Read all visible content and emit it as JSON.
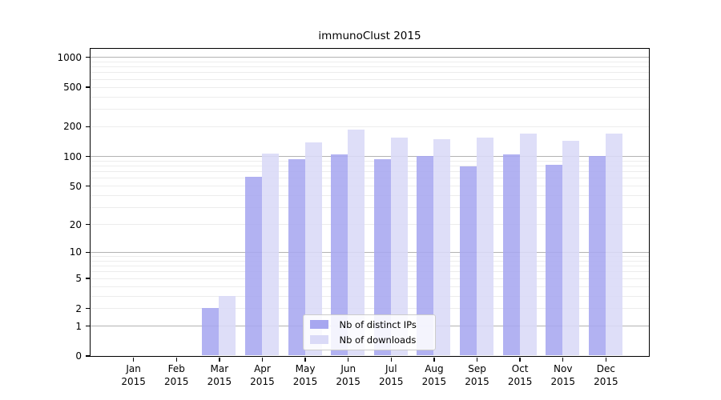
{
  "chart_data": {
    "type": "bar",
    "title": "immunoClust 2015",
    "categories": [
      "Jan",
      "Feb",
      "Mar",
      "Apr",
      "May",
      "Jun",
      "Jul",
      "Aug",
      "Sep",
      "Oct",
      "Nov",
      "Dec"
    ],
    "year": "2015",
    "series": [
      {
        "name": "Nb of distinct IPs",
        "color": "#a7a7f0",
        "values": [
          0,
          0,
          2,
          62,
          93,
          104,
          93,
          100,
          78,
          104,
          82,
          100
        ]
      },
      {
        "name": "Nb of downloads",
        "color": "#dadaf7",
        "values": [
          0,
          0,
          3,
          107,
          139,
          184,
          154,
          148,
          155,
          169,
          143,
          169
        ]
      }
    ],
    "yticks": [
      0,
      1,
      2,
      5,
      10,
      20,
      50,
      100,
      200,
      500,
      1000
    ],
    "y_scale": "log1p",
    "ylim_top": 1220,
    "xlabel": "",
    "ylabel": "",
    "grid": "on",
    "major_grid_color": "#b3b3b3",
    "minor_grid_color": "#ececec",
    "legend_position": "inside-bottom-center"
  }
}
